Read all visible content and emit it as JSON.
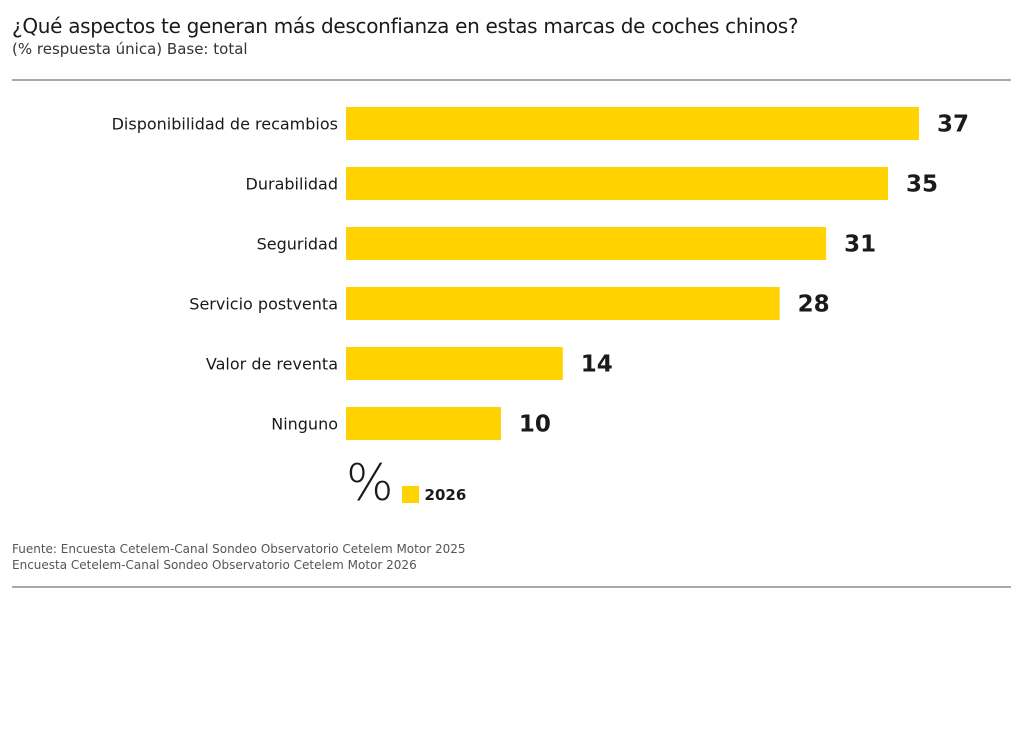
{
  "header": {
    "title": "¿Qué aspectos te generan más desconfianza en estas marcas de coches chinos?",
    "subtitle": "(% respuesta única) Base: total"
  },
  "colors": {
    "bar": "#FFD200",
    "text": "#1a1a1a",
    "rule": "#a9a9a9"
  },
  "chart_data": {
    "type": "bar",
    "orientation": "horizontal",
    "title": "¿Qué aspectos te generan más desconfianza en estas marcas de coches chinos?",
    "subtitle": "(% respuesta única) Base: total",
    "xlabel": "",
    "ylabel": "",
    "unit_label": "%",
    "categories": [
      "Disponibilidad de recambios",
      "Durabilidad",
      "Seguridad",
      "Servicio postventa",
      "Valor de reventa",
      "Ninguno"
    ],
    "series": [
      {
        "name": "2026",
        "color": "#FFD200",
        "values": [
          37,
          35,
          31,
          28,
          14,
          10
        ]
      }
    ],
    "xlim": [
      0,
      37
    ],
    "grid": false,
    "legend": "bottom-left",
    "data_labels": true
  },
  "legend": {
    "unit_symbol": "%",
    "series_label": "2026"
  },
  "footer": {
    "source_line1": "Fuente: Encuesta Cetelem-Canal Sondeo Observatorio Cetelem Motor 2025",
    "source_line2": "Encuesta Cetelem-Canal Sondeo Observatorio Cetelem Motor 2026"
  }
}
